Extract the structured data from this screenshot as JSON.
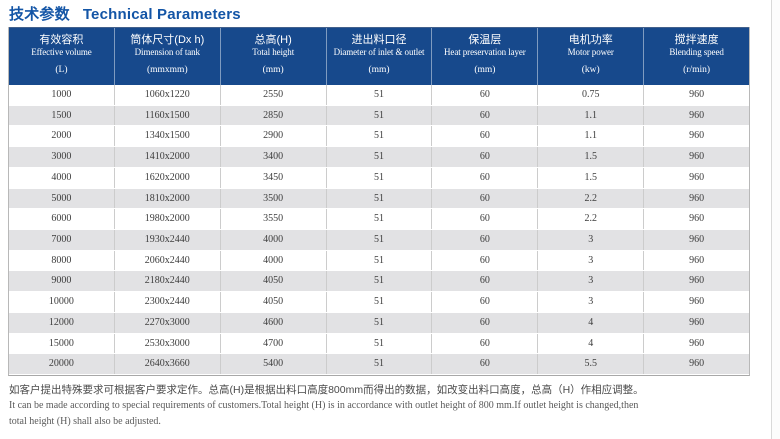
{
  "title": {
    "zh": "技术参数",
    "en": "Technical Parameters"
  },
  "table": {
    "columns": [
      {
        "zh": "有效容积",
        "en": "Effective volume",
        "unit": "(L)"
      },
      {
        "zh": "筒体尺寸(Dx h)",
        "en": "Dimension of tank",
        "unit": "(mmxmm)"
      },
      {
        "zh": "总高(H)",
        "en": "Total height",
        "unit": "(mm)"
      },
      {
        "zh": "进出料口径",
        "en": "Diameter of inlet & outlet",
        "unit": "(mm)"
      },
      {
        "zh": "保温层",
        "en": "Heat preservation layer",
        "unit": "(mm)"
      },
      {
        "zh": "电机功率",
        "en": "Motor power",
        "unit": "(kw)"
      },
      {
        "zh": "搅拌速度",
        "en": "Blending speed",
        "unit": "(r/min)"
      }
    ],
    "rows": [
      [
        "1000",
        "1060x1220",
        "2550",
        "51",
        "60",
        "0.75",
        "960"
      ],
      [
        "1500",
        "1160x1500",
        "2850",
        "51",
        "60",
        "1.1",
        "960"
      ],
      [
        "2000",
        "1340x1500",
        "2900",
        "51",
        "60",
        "1.1",
        "960"
      ],
      [
        "3000",
        "1410x2000",
        "3400",
        "51",
        "60",
        "1.5",
        "960"
      ],
      [
        "4000",
        "1620x2000",
        "3450",
        "51",
        "60",
        "1.5",
        "960"
      ],
      [
        "5000",
        "1810x2000",
        "3500",
        "51",
        "60",
        "2.2",
        "960"
      ],
      [
        "6000",
        "1980x2000",
        "3550",
        "51",
        "60",
        "2.2",
        "960"
      ],
      [
        "7000",
        "1930x2440",
        "4000",
        "51",
        "60",
        "3",
        "960"
      ],
      [
        "8000",
        "2060x2440",
        "4000",
        "51",
        "60",
        "3",
        "960"
      ],
      [
        "9000",
        "2180x2440",
        "4050",
        "51",
        "60",
        "3",
        "960"
      ],
      [
        "10000",
        "2300x2440",
        "4050",
        "51",
        "60",
        "3",
        "960"
      ],
      [
        "12000",
        "2270x3000",
        "4600",
        "51",
        "60",
        "4",
        "960"
      ],
      [
        "15000",
        "2530x3000",
        "4700",
        "51",
        "60",
        "4",
        "960"
      ],
      [
        "20000",
        "2640x3660",
        "5400",
        "51",
        "60",
        "5.5",
        "960"
      ]
    ]
  },
  "notes": {
    "zh": "如客户提出特殊要求可根据客户要求定作。总高(H)是根据出料口高度800mm而得出的数据，如改变出料口高度，总高（H）作相应调整。",
    "en_line1": "It can be made according to special requirements of customers.Total height (H) is in accordance with outlet height of 800 mm.If outlet height is changed,then",
    "en_line2": "total height (H) shall also be adjusted."
  },
  "colors": {
    "header_bg": "#17498c",
    "title_blue": "#1355a6",
    "row_alt": "#e2e2e4",
    "data_text": "#3d3d3d"
  }
}
